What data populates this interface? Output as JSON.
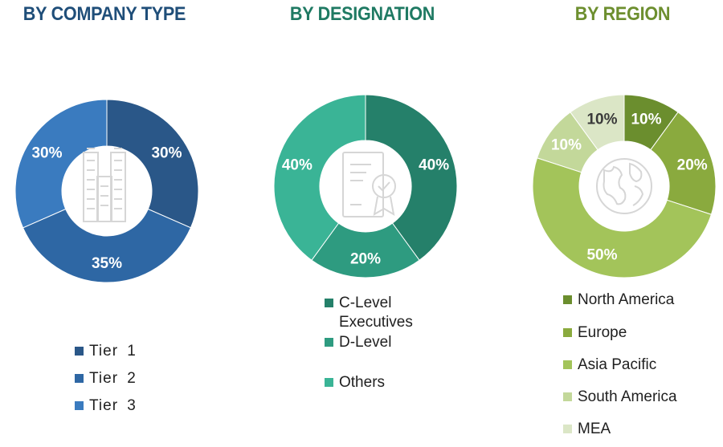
{
  "titles": {
    "company": "BY COMPANY TYPE",
    "designation": "BY DESIGNATION",
    "region": "BY REGION"
  },
  "colors": {
    "company_title": "#1f4e79",
    "designation_title": "#1f7a63",
    "region_title": "#6d8f2f"
  },
  "chart_data": [
    {
      "type": "pie",
      "donut": true,
      "title": "BY COMPANY TYPE",
      "center_icon": "office-buildings-icon",
      "categories": [
        "Tier 1",
        "Tier 2",
        "Tier 3"
      ],
      "values": [
        30,
        35,
        30
      ],
      "labels": [
        "30%",
        "35%",
        "30%"
      ],
      "colors": [
        "#2a5788",
        "#2e67a4",
        "#3a7bbf"
      ],
      "legend_placement": "bottom"
    },
    {
      "type": "pie",
      "donut": true,
      "title": "BY DESIGNATION",
      "center_icon": "certificate-document-icon",
      "categories": [
        "C-Level Executives",
        "D-Level",
        "Others"
      ],
      "legend_lines": [
        [
          "C-Level",
          "Executives"
        ],
        [
          "D-Level"
        ],
        [
          "Others"
        ]
      ],
      "values": [
        40,
        20,
        40
      ],
      "labels": [
        "40%",
        "20%",
        "40%"
      ],
      "colors": [
        "#25806a",
        "#2e9b80",
        "#3ab496"
      ],
      "legend_placement": "bottom"
    },
    {
      "type": "pie",
      "donut": true,
      "title": "BY REGION",
      "center_icon": "globe-icon",
      "categories": [
        "North America",
        "Europe",
        "Asia Pacific",
        "South America",
        "MEA"
      ],
      "values": [
        10,
        20,
        50,
        10,
        10
      ],
      "labels": [
        "10%",
        "20%",
        "50%",
        "10%",
        "10%"
      ],
      "colors": [
        "#6b8e2e",
        "#8aaa3e",
        "#a3c45a",
        "#c3d89a",
        "#dbe6c6"
      ],
      "label_colors": [
        "#ffffff",
        "#ffffff",
        "#ffffff",
        "#ffffff",
        "#3a3a3a"
      ],
      "legend_placement": "bottom"
    }
  ]
}
